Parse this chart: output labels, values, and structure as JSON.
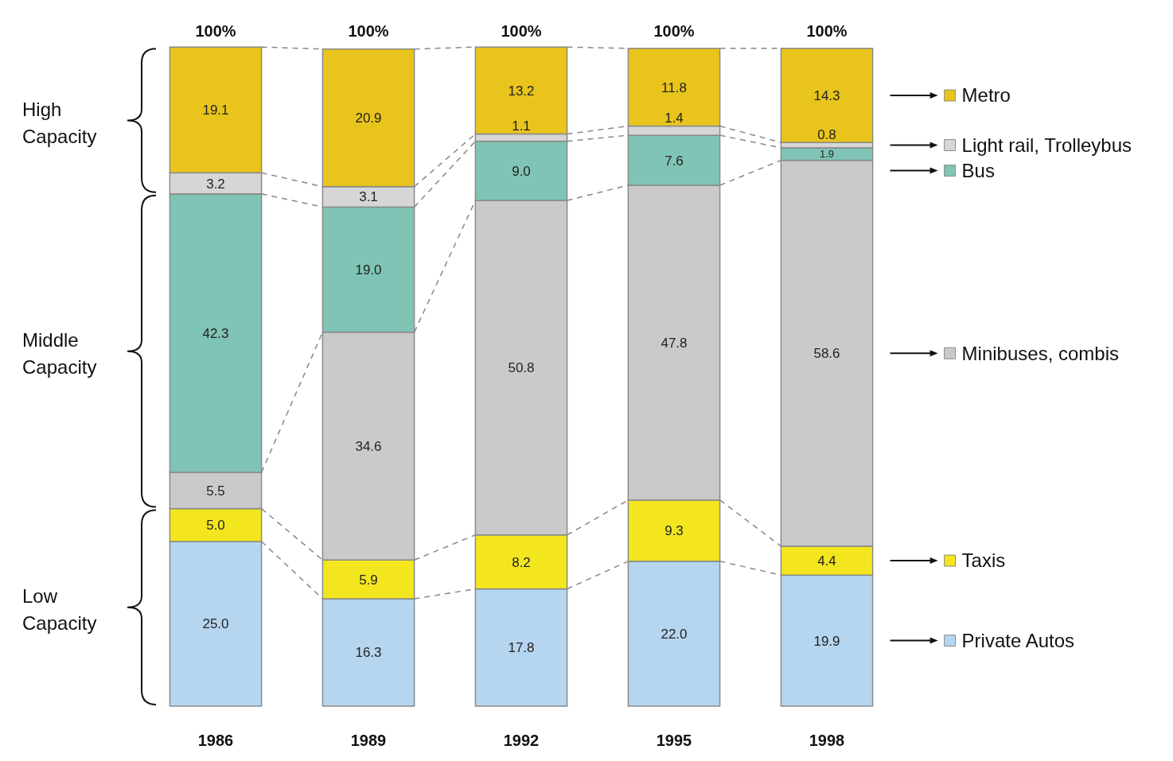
{
  "chart_data": {
    "type": "bar",
    "stacked": true,
    "categories": [
      "1986",
      "1989",
      "1992",
      "1995",
      "1998"
    ],
    "series": [
      {
        "name": "Private Autos",
        "color": "#b6d5ef",
        "values": [
          25.0,
          16.3,
          17.8,
          22.0,
          19.9
        ],
        "value_labels": [
          "25.0",
          "16.3",
          "17.8",
          "22.0",
          "19.9"
        ]
      },
      {
        "name": "Taxis",
        "color": "#f3e61e",
        "values": [
          5.0,
          5.9,
          8.2,
          9.3,
          4.4
        ],
        "value_labels": [
          "5.0",
          "5.9",
          "8.2",
          "9.3",
          "4.4"
        ]
      },
      {
        "name": "Minibuses, combis",
        "color": "#cacaca",
        "values": [
          5.5,
          34.6,
          50.8,
          47.8,
          58.6
        ],
        "value_labels": [
          "5.5",
          "34.6",
          "50.8",
          "47.8",
          "58.6"
        ]
      },
      {
        "name": "Bus",
        "color": "#80c4b5",
        "values": [
          42.3,
          19.0,
          9.0,
          7.6,
          1.9
        ],
        "value_labels": [
          "42.3",
          "19.0",
          "9.0",
          "7.6",
          "1.9"
        ]
      },
      {
        "name": "Light rail, Trolleybus",
        "color": "#d6d6d6",
        "values": [
          3.2,
          3.1,
          1.1,
          1.4,
          0.8
        ],
        "value_labels": [
          "3.2",
          "3.1",
          "1.1",
          "1.4",
          "0.8"
        ]
      },
      {
        "name": "Metro",
        "color": "#e9c41c",
        "values": [
          19.1,
          20.9,
          13.2,
          11.8,
          14.3
        ],
        "value_labels": [
          "19.1",
          "20.9",
          "13.2",
          "11.8",
          "14.3"
        ]
      }
    ],
    "totals": [
      "100%",
      "100%",
      "100%",
      "100%",
      "100%"
    ],
    "ylim": [
      0,
      100
    ],
    "tick_labels": "x",
    "legend": "right",
    "annotations": [
      "High Capacity",
      "Middle Capacity",
      "Low Capacity"
    ]
  }
}
